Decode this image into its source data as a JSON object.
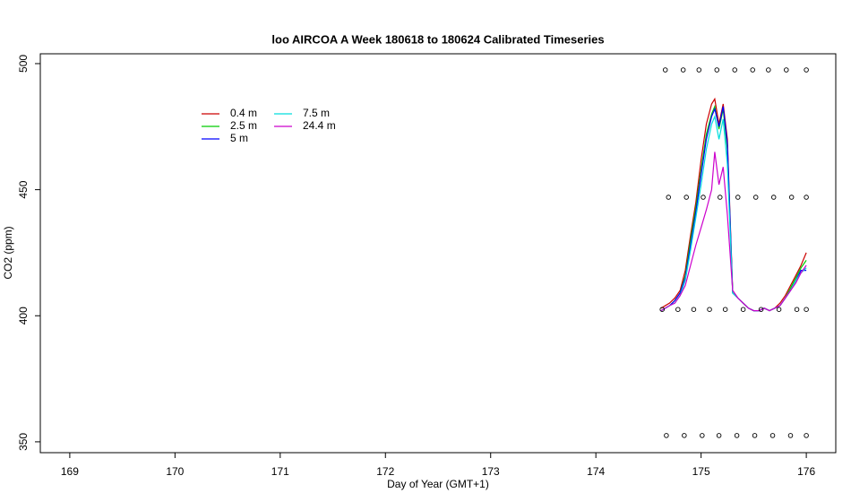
{
  "chart_data": {
    "type": "line",
    "title": "loo AIRCOA A  Week 180618 to 180624  Calibrated Timeseries",
    "x_label": "Day of Year (GMT+1)",
    "y_label": "CO2 (ppm)",
    "xlim": [
      168.72,
      176.28
    ],
    "ylim": [
      345.7,
      503.9
    ],
    "xticks": [
      169,
      170,
      171,
      172,
      173,
      174,
      175,
      176
    ],
    "yticks": [
      350,
      400,
      450,
      500
    ],
    "x": [
      174.62,
      174.7,
      174.75,
      174.8,
      174.85,
      174.9,
      174.95,
      175.0,
      175.05,
      175.1,
      175.13,
      175.17,
      175.21,
      175.25,
      175.3,
      175.35,
      175.4,
      175.45,
      175.5,
      175.55,
      175.6,
      175.65,
      175.7,
      175.75,
      175.8,
      175.85,
      175.9,
      175.95,
      176.0
    ],
    "series": [
      {
        "name": "0.4 m",
        "color": "#cc0000",
        "values": [
          403,
          405,
          407,
          410,
          418,
          432,
          445,
          462,
          476,
          484,
          486,
          476,
          484,
          470,
          410,
          407,
          405,
          403,
          402,
          402,
          403,
          402,
          403,
          405,
          408,
          412,
          416,
          420,
          425
        ]
      },
      {
        "name": "2.5 m",
        "color": "#00cc00",
        "values": [
          402,
          404,
          406,
          409,
          416,
          430,
          443,
          458,
          472,
          480,
          483,
          474,
          482,
          466,
          409,
          407,
          405,
          403,
          402,
          402,
          403,
          402,
          403,
          404,
          407,
          411,
          415,
          419,
          422
        ]
      },
      {
        "name": "5 m",
        "color": "#0000ff",
        "values": [
          402,
          404,
          406,
          409,
          415,
          428,
          441,
          456,
          470,
          479,
          482,
          475,
          483,
          468,
          409,
          407,
          405,
          403,
          402,
          402,
          403,
          402,
          403,
          404,
          407,
          410,
          414,
          418,
          418
        ]
      },
      {
        "name": "7.5 m",
        "color": "#00dddd",
        "values": [
          402,
          404,
          405,
          408,
          414,
          426,
          439,
          452,
          466,
          476,
          479,
          470,
          478,
          460,
          409,
          407,
          405,
          403,
          402,
          402,
          403,
          402,
          403,
          404,
          407,
          410,
          414,
          417,
          419
        ]
      },
      {
        "name": "24.4 m",
        "color": "#cc00cc",
        "values": [
          402,
          404,
          405,
          408,
          412,
          420,
          428,
          435,
          442,
          450,
          465,
          452,
          459,
          440,
          410,
          407,
          405,
          403,
          402,
          402,
          403,
          402,
          403,
          404,
          407,
          410,
          413,
          417,
          420
        ]
      }
    ],
    "points": {
      "x": [
        174.66,
        174.83,
        174.98,
        175.15,
        175.32,
        175.49,
        175.64,
        175.81,
        176.0,
        174.69,
        174.86,
        175.02,
        175.18,
        175.35,
        175.52,
        175.69,
        175.86,
        176.0,
        174.63,
        174.78,
        174.93,
        175.08,
        175.23,
        175.4,
        175.57,
        175.74,
        175.91,
        176.0,
        174.67,
        174.84,
        175.01,
        175.17,
        175.34,
        175.51,
        175.68,
        175.85,
        176.0
      ],
      "y": [
        497.5,
        497.5,
        497.5,
        497.5,
        497.5,
        497.5,
        497.5,
        497.5,
        497.5,
        447,
        447,
        447,
        447,
        447,
        447,
        447,
        447,
        447,
        402.5,
        402.5,
        402.5,
        402.5,
        402.5,
        402.5,
        402.5,
        402.5,
        402.5,
        402.5,
        352.5,
        352.5,
        352.5,
        352.5,
        352.5,
        352.5,
        352.5,
        352.5,
        352.5
      ]
    }
  }
}
